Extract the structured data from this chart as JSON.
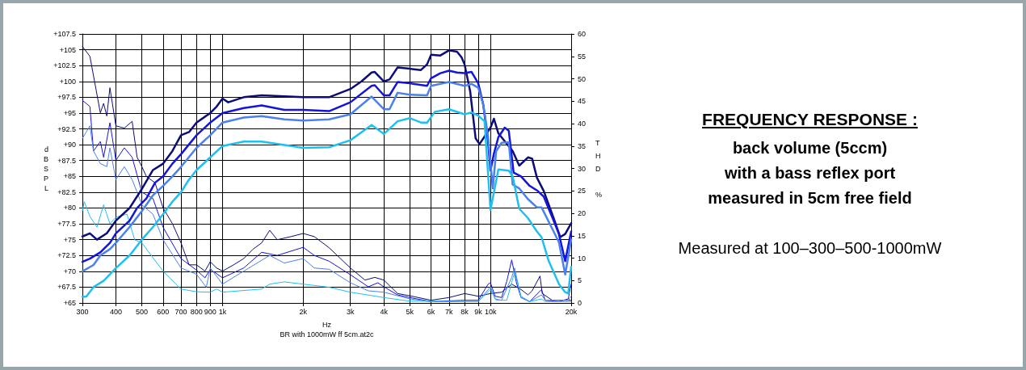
{
  "chart_data": {
    "type": "line",
    "title": "FREQUENCY RESPONSE :",
    "subtitle": "back volume (5ccm)\nwith a bass reflex port\nmeasured in 5cm free field",
    "xlabel": "Hz",
    "ylabel": "dBSPL",
    "y2label": "THD %",
    "annotations": [
      "Measured at 100–300–500-1000mW",
      "BR with 1000mW ff 5cm.at2c"
    ],
    "log": "x",
    "grid": true,
    "marker": "none",
    "xlim": [
      300,
      20000
    ],
    "xticks": [
      300,
      400,
      500,
      600,
      700,
      800,
      900,
      {
        "value": 1000,
        "label": "1k"
      },
      {
        "value": 2000,
        "label": "2k"
      },
      {
        "value": 3000,
        "label": "3k"
      },
      {
        "value": 4000,
        "label": "4k"
      },
      {
        "value": 5000,
        "label": "5k"
      },
      {
        "value": 6000,
        "label": "6k"
      },
      {
        "value": 7000,
        "label": "7k"
      },
      {
        "value": 8000,
        "label": "8k"
      },
      {
        "value": 9000,
        "label": "9k"
      },
      {
        "value": 10000,
        "label": "10k"
      },
      {
        "value": 20000,
        "label": "20k"
      }
    ],
    "ylim": [
      65,
      107.5
    ],
    "yticks": [
      {
        "value": 65,
        "label": "+65"
      },
      {
        "value": 67.5,
        "label": "+67.5"
      },
      {
        "value": 70,
        "label": "+70"
      },
      {
        "value": 72.5,
        "label": "+72.5"
      },
      {
        "value": 75,
        "label": "+75"
      },
      {
        "value": 77.5,
        "label": "+77.5"
      },
      {
        "value": 80,
        "label": "+80"
      },
      {
        "value": 82.5,
        "label": "+82.5"
      },
      {
        "value": 85,
        "label": "+85"
      },
      {
        "value": 87.5,
        "label": "+87.5"
      },
      {
        "value": 90,
        "label": "+90"
      },
      {
        "value": 92.5,
        "label": "+92.5"
      },
      {
        "value": 95,
        "label": "+95"
      },
      {
        "value": 97.5,
        "label": "+97.5"
      },
      {
        "value": 100,
        "label": "+100"
      },
      {
        "value": 102.5,
        "label": "+102.5"
      },
      {
        "value": 105,
        "label": "+105"
      },
      {
        "value": 107.5,
        "label": "+107.5"
      }
    ],
    "y2lim": [
      0,
      60
    ],
    "y2ticks": [
      0,
      5,
      10,
      15,
      20,
      25,
      30,
      35,
      40,
      45,
      50,
      55,
      60
    ],
    "series": [
      {
        "color": "#0c0c7a",
        "x": [
          300,
          320,
          340,
          370,
          400,
          450,
          500,
          550,
          600,
          650,
          700,
          750,
          800,
          900,
          950,
          1000,
          1050,
          1200,
          1400,
          2000,
          2500,
          3000,
          3300,
          3600,
          3700,
          4000,
          4200,
          4500,
          5000,
          5500,
          5800,
          6000,
          6500,
          7000,
          7500,
          7800,
          8000,
          8400,
          8800,
          9100,
          10000,
          10300,
          10700,
          12100,
          12800,
          13800,
          14300,
          14900,
          15800,
          17200,
          18200,
          19000,
          20000
        ],
        "values": [
          75.5,
          76,
          75,
          76,
          78,
          80,
          83,
          86,
          87,
          89,
          91.5,
          92,
          93.5,
          95,
          96,
          97.3,
          96.7,
          97.5,
          97.8,
          97.5,
          97.5,
          98.8,
          100,
          101.4,
          101.5,
          100,
          100.3,
          102.2,
          102,
          101.8,
          102.7,
          104.2,
          104.1,
          104.9,
          104.7,
          103.8,
          102.7,
          98.4,
          91,
          90.1,
          92.7,
          94.1,
          91.8,
          89,
          86.7,
          88,
          87.8,
          84.8,
          82.7,
          78.4,
          75.4,
          75.9,
          77.6
        ]
      },
      {
        "color": "#1414e0",
        "x": [
          300,
          320,
          350,
          380,
          400,
          450,
          480,
          520,
          560,
          600,
          650,
          700,
          800,
          900,
          1000,
          1200,
          1400,
          1700,
          2000,
          2500,
          3000,
          3600,
          3700,
          4000,
          4200,
          4500,
          5000,
          5800,
          6000,
          6500,
          7000,
          7500,
          8000,
          8500,
          9000,
          9400,
          9800,
          10000,
          10300,
          10700,
          11300,
          11700,
          12200,
          13000,
          14000,
          15000,
          15800,
          17200,
          18000,
          19000,
          20000
        ],
        "values": [
          71.5,
          72,
          73,
          74.5,
          76,
          78,
          80,
          81.5,
          84,
          85,
          87,
          88.5,
          91.5,
          93.5,
          95,
          95.8,
          96.2,
          95.5,
          95.5,
          95.3,
          96.7,
          99.3,
          99.4,
          97.8,
          97.8,
          99.9,
          99.7,
          99.3,
          100.5,
          101.3,
          101.7,
          101.4,
          101.3,
          101.5,
          99.7,
          96.3,
          90.3,
          85.9,
          88.6,
          91.2,
          92.7,
          92.2,
          85.6,
          85,
          83.5,
          82.7,
          81.8,
          78,
          75.9,
          71.6,
          76.3
        ]
      },
      {
        "color": "#4a80f0",
        "x": [
          300,
          330,
          350,
          380,
          400,
          450,
          500,
          550,
          600,
          650,
          700,
          800,
          900,
          1000,
          1200,
          1400,
          1700,
          2000,
          2500,
          3000,
          3600,
          4000,
          4200,
          4500,
          5000,
          5800,
          6000,
          7000,
          8000,
          8500,
          9000,
          9400,
          9800,
          10200,
          10500,
          11000,
          11700,
          12100,
          12800,
          13800,
          14900,
          15500,
          17200,
          18000,
          19000,
          20000
        ],
        "values": [
          70,
          71,
          72.5,
          73.5,
          74.5,
          77,
          79.5,
          82,
          83.5,
          85,
          86.5,
          89.5,
          91.5,
          93.5,
          94.3,
          94.5,
          94,
          93.8,
          94,
          94.8,
          97.6,
          95.6,
          95.6,
          98.2,
          97.9,
          97.8,
          99.3,
          99.9,
          99.3,
          99.6,
          99,
          96.3,
          91.2,
          83.1,
          89,
          90.3,
          90.4,
          83.7,
          83.1,
          81.4,
          80.1,
          80.1,
          76.3,
          74.6,
          69.5,
          75
        ]
      },
      {
        "color": "#1ec0f0",
        "x": [
          300,
          310,
          330,
          360,
          400,
          450,
          500,
          550,
          600,
          650,
          700,
          750,
          800,
          900,
          1000,
          1200,
          1400,
          2000,
          2500,
          3000,
          3600,
          4000,
          4500,
          5000,
          5500,
          5800,
          6200,
          7000,
          8000,
          8500,
          9000,
          9500,
          10000,
          10700,
          11700,
          12100,
          12800,
          13800,
          14900,
          15500,
          16500,
          18000,
          19000,
          19500,
          20000
        ],
        "values": [
          66,
          66,
          67.5,
          68.5,
          70.5,
          72.5,
          75,
          77,
          79,
          81,
          82.5,
          84.5,
          86,
          88,
          89.8,
          90.5,
          90.5,
          89.5,
          89.6,
          90.7,
          93.1,
          91.7,
          93.7,
          94.2,
          93.5,
          93.5,
          95.2,
          95.6,
          94.8,
          95.1,
          94.6,
          93.7,
          79.7,
          86.1,
          85.9,
          85,
          79.9,
          78.4,
          76.3,
          75.4,
          71.6,
          68,
          66.7,
          66.5,
          70.7
        ]
      },
      {
        "color": "#0c0c7a",
        "axis": "y2",
        "x": [
          300,
          320,
          350,
          360,
          370,
          380,
          400,
          430,
          460,
          480,
          500,
          520,
          560,
          600,
          650,
          700,
          750,
          800,
          860,
          900,
          950,
          1000,
          1100,
          1200,
          1300,
          1400,
          1500,
          1600,
          1800,
          2000,
          2200,
          2500,
          3000,
          3400,
          3700,
          4000,
          4500,
          5000,
          6000,
          7000,
          8000,
          9000,
          10000,
          11000,
          12000,
          13000,
          13800,
          14300,
          15300,
          15600,
          17000,
          20000
        ],
        "values": [
          57.2,
          55,
          42.4,
          44.5,
          41.7,
          48,
          39.5,
          39,
          40.5,
          32.5,
          30.4,
          28.2,
          26.8,
          21.2,
          17.7,
          13.4,
          8.5,
          8.5,
          7.1,
          9.2,
          7.8,
          7.1,
          8.5,
          9.9,
          12,
          13.4,
          16.2,
          14.1,
          14.8,
          15.5,
          14.8,
          12.3,
          7.8,
          5.1,
          5.7,
          5.1,
          2.1,
          1.6,
          0.6,
          1.2,
          2.1,
          1.5,
          2.1,
          2.4,
          4.2,
          3,
          1.8,
          2.7,
          6,
          2.1,
          0.6,
          0.6
        ]
      },
      {
        "color": "#1414e0",
        "axis": "y2",
        "x": [
          300,
          320,
          330,
          350,
          360,
          380,
          400,
          430,
          460,
          500,
          550,
          600,
          700,
          800,
          860,
          900,
          1000,
          1200,
          1400,
          1600,
          2000,
          2200,
          2500,
          3000,
          3500,
          3800,
          4000,
          4500,
          5000,
          6000,
          8000,
          9000,
          9800,
          10000,
          10400,
          11000,
          11500,
          12000,
          12500,
          13000,
          14000,
          15500,
          16000,
          18000,
          19500,
          20000
        ],
        "values": [
          45.2,
          43.8,
          33.9,
          36,
          32.5,
          40.2,
          31.8,
          34.6,
          32.5,
          24.7,
          23.3,
          16.9,
          9.9,
          7.3,
          5.6,
          7.5,
          5.6,
          7.8,
          11.3,
          10.6,
          12.4,
          10.6,
          9.3,
          6.3,
          3.6,
          4.5,
          3.6,
          1.8,
          1.2,
          0.3,
          0.6,
          0.6,
          4.2,
          4.5,
          1.5,
          1.2,
          4.8,
          9.6,
          4.5,
          1.2,
          0.3,
          3,
          0.6,
          0.3,
          0.9,
          4.2
        ]
      },
      {
        "color": "#4a80f0",
        "axis": "y2",
        "x": [
          300,
          320,
          330,
          350,
          370,
          380,
          400,
          430,
          460,
          480,
          500,
          550,
          600,
          700,
          800,
          870,
          900,
          1000,
          1200,
          1500,
          1700,
          2000,
          2200,
          2500,
          3000,
          3500,
          4000,
          5000,
          6000,
          9000,
          10000,
          10400,
          11000,
          12000,
          12300,
          13000,
          14000,
          15500,
          16000,
          19500,
          20000
        ],
        "values": [
          36.7,
          39.5,
          33.9,
          31.1,
          30.4,
          34.6,
          27.5,
          30.4,
          27.5,
          24.7,
          21.9,
          19.8,
          14.1,
          7.8,
          6.4,
          3.5,
          7.8,
          4.2,
          7.1,
          10.6,
          8.9,
          9.9,
          7.8,
          7.5,
          4.5,
          2.7,
          2.4,
          0.9,
          0.3,
          0.3,
          3.6,
          0.9,
          0.6,
          5.7,
          7.8,
          1.2,
          0.3,
          1.8,
          0.6,
          0.6,
          1.5
        ]
      },
      {
        "color": "#1ec0f0",
        "axis": "y2",
        "x": [
          300,
          305,
          320,
          340,
          360,
          380,
          400,
          440,
          470,
          500,
          600,
          700,
          800,
          900,
          950,
          1000,
          1400,
          1500,
          1700,
          2000,
          2500,
          3000,
          4000,
          5000,
          9000,
          10000,
          10500,
          11500,
          12300,
          13000,
          14000,
          15500,
          16000,
          20000
        ],
        "values": [
          20.5,
          22.6,
          19.3,
          16.9,
          21.9,
          17.7,
          19.1,
          19.8,
          14.1,
          13.4,
          7.1,
          3.1,
          2.5,
          2.4,
          3.1,
          2.4,
          3.1,
          4.2,
          4.7,
          4.2,
          3.5,
          2.4,
          1.2,
          0.4,
          0.3,
          3,
          0.6,
          0.6,
          6.9,
          1.5,
          0.3,
          0.9,
          0.3,
          0.3
        ]
      }
    ]
  }
}
